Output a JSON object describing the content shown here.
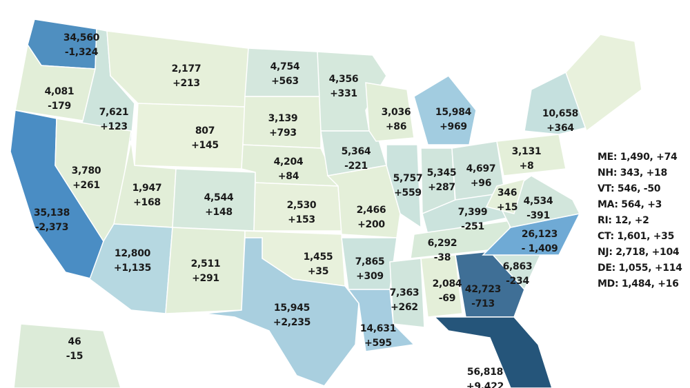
{
  "states": [
    {
      "value": "34,560",
      "change": "-1,324"
    },
    {
      "value": "4,081",
      "change": "-179"
    },
    {
      "value": "35,138",
      "change": "-2,373"
    },
    {
      "value": "7,621",
      "change": "+123"
    },
    {
      "value": "3,780",
      "change": "+261"
    },
    {
      "value": "2,177",
      "change": "+213"
    },
    {
      "value": "807",
      "change": "+145"
    },
    {
      "value": "1,947",
      "change": "+168"
    },
    {
      "value": "12,800",
      "change": "+1,135"
    },
    {
      "value": "4,544",
      "change": "+148"
    },
    {
      "value": "2,511",
      "change": "+291"
    },
    {
      "value": "4,754",
      "change": "+563"
    },
    {
      "value": "3,139",
      "change": "+793"
    },
    {
      "value": "4,204",
      "change": "+84"
    },
    {
      "value": "2,530",
      "change": "+153"
    },
    {
      "value": "1,455",
      "change": "+35"
    },
    {
      "value": "15,945",
      "change": "+2,235"
    },
    {
      "value": "4,356",
      "change": "+331"
    },
    {
      "value": "5,364",
      "change": "-221"
    },
    {
      "value": "2,466",
      "change": "+200"
    },
    {
      "value": "7,865",
      "change": "+309"
    },
    {
      "value": "14,631",
      "change": "+595"
    },
    {
      "value": "3,036",
      "change": "+86"
    },
    {
      "value": "5,757",
      "change": "+559"
    },
    {
      "value": "15,984",
      "change": "+969"
    },
    {
      "value": "5,345",
      "change": "+287"
    },
    {
      "value": "4,697",
      "change": "+96"
    },
    {
      "value": "7,399",
      "change": "-251"
    },
    {
      "value": "6,292",
      "change": "-38"
    },
    {
      "value": "7,363",
      "change": "+262"
    },
    {
      "value": "2,084",
      "change": "-69"
    },
    {
      "value": "42,723",
      "change": "-713"
    },
    {
      "value": "56,818",
      "change": "+9,422"
    },
    {
      "value": "6,863",
      "change": "-234"
    },
    {
      "value": "26,123",
      "change": "- 1,409"
    },
    {
      "value": "4,534",
      "change": "-391"
    },
    {
      "value": "346",
      "change": "+15"
    },
    {
      "value": "3,131",
      "change": "+8"
    },
    {
      "value": "10,658",
      "change": "+364"
    },
    {
      "value": "46",
      "change": "-15"
    }
  ],
  "side_list": [
    "ME: 1,490, +74",
    "NH: 343, +18",
    "VT: 546, -50",
    "MA: 564, +3",
    "RI: 12, +2",
    "CT: 1,601, +35",
    "NJ: 2,718, +104",
    "DE: 1,055, +114",
    "MD: 1,484, +16"
  ]
}
